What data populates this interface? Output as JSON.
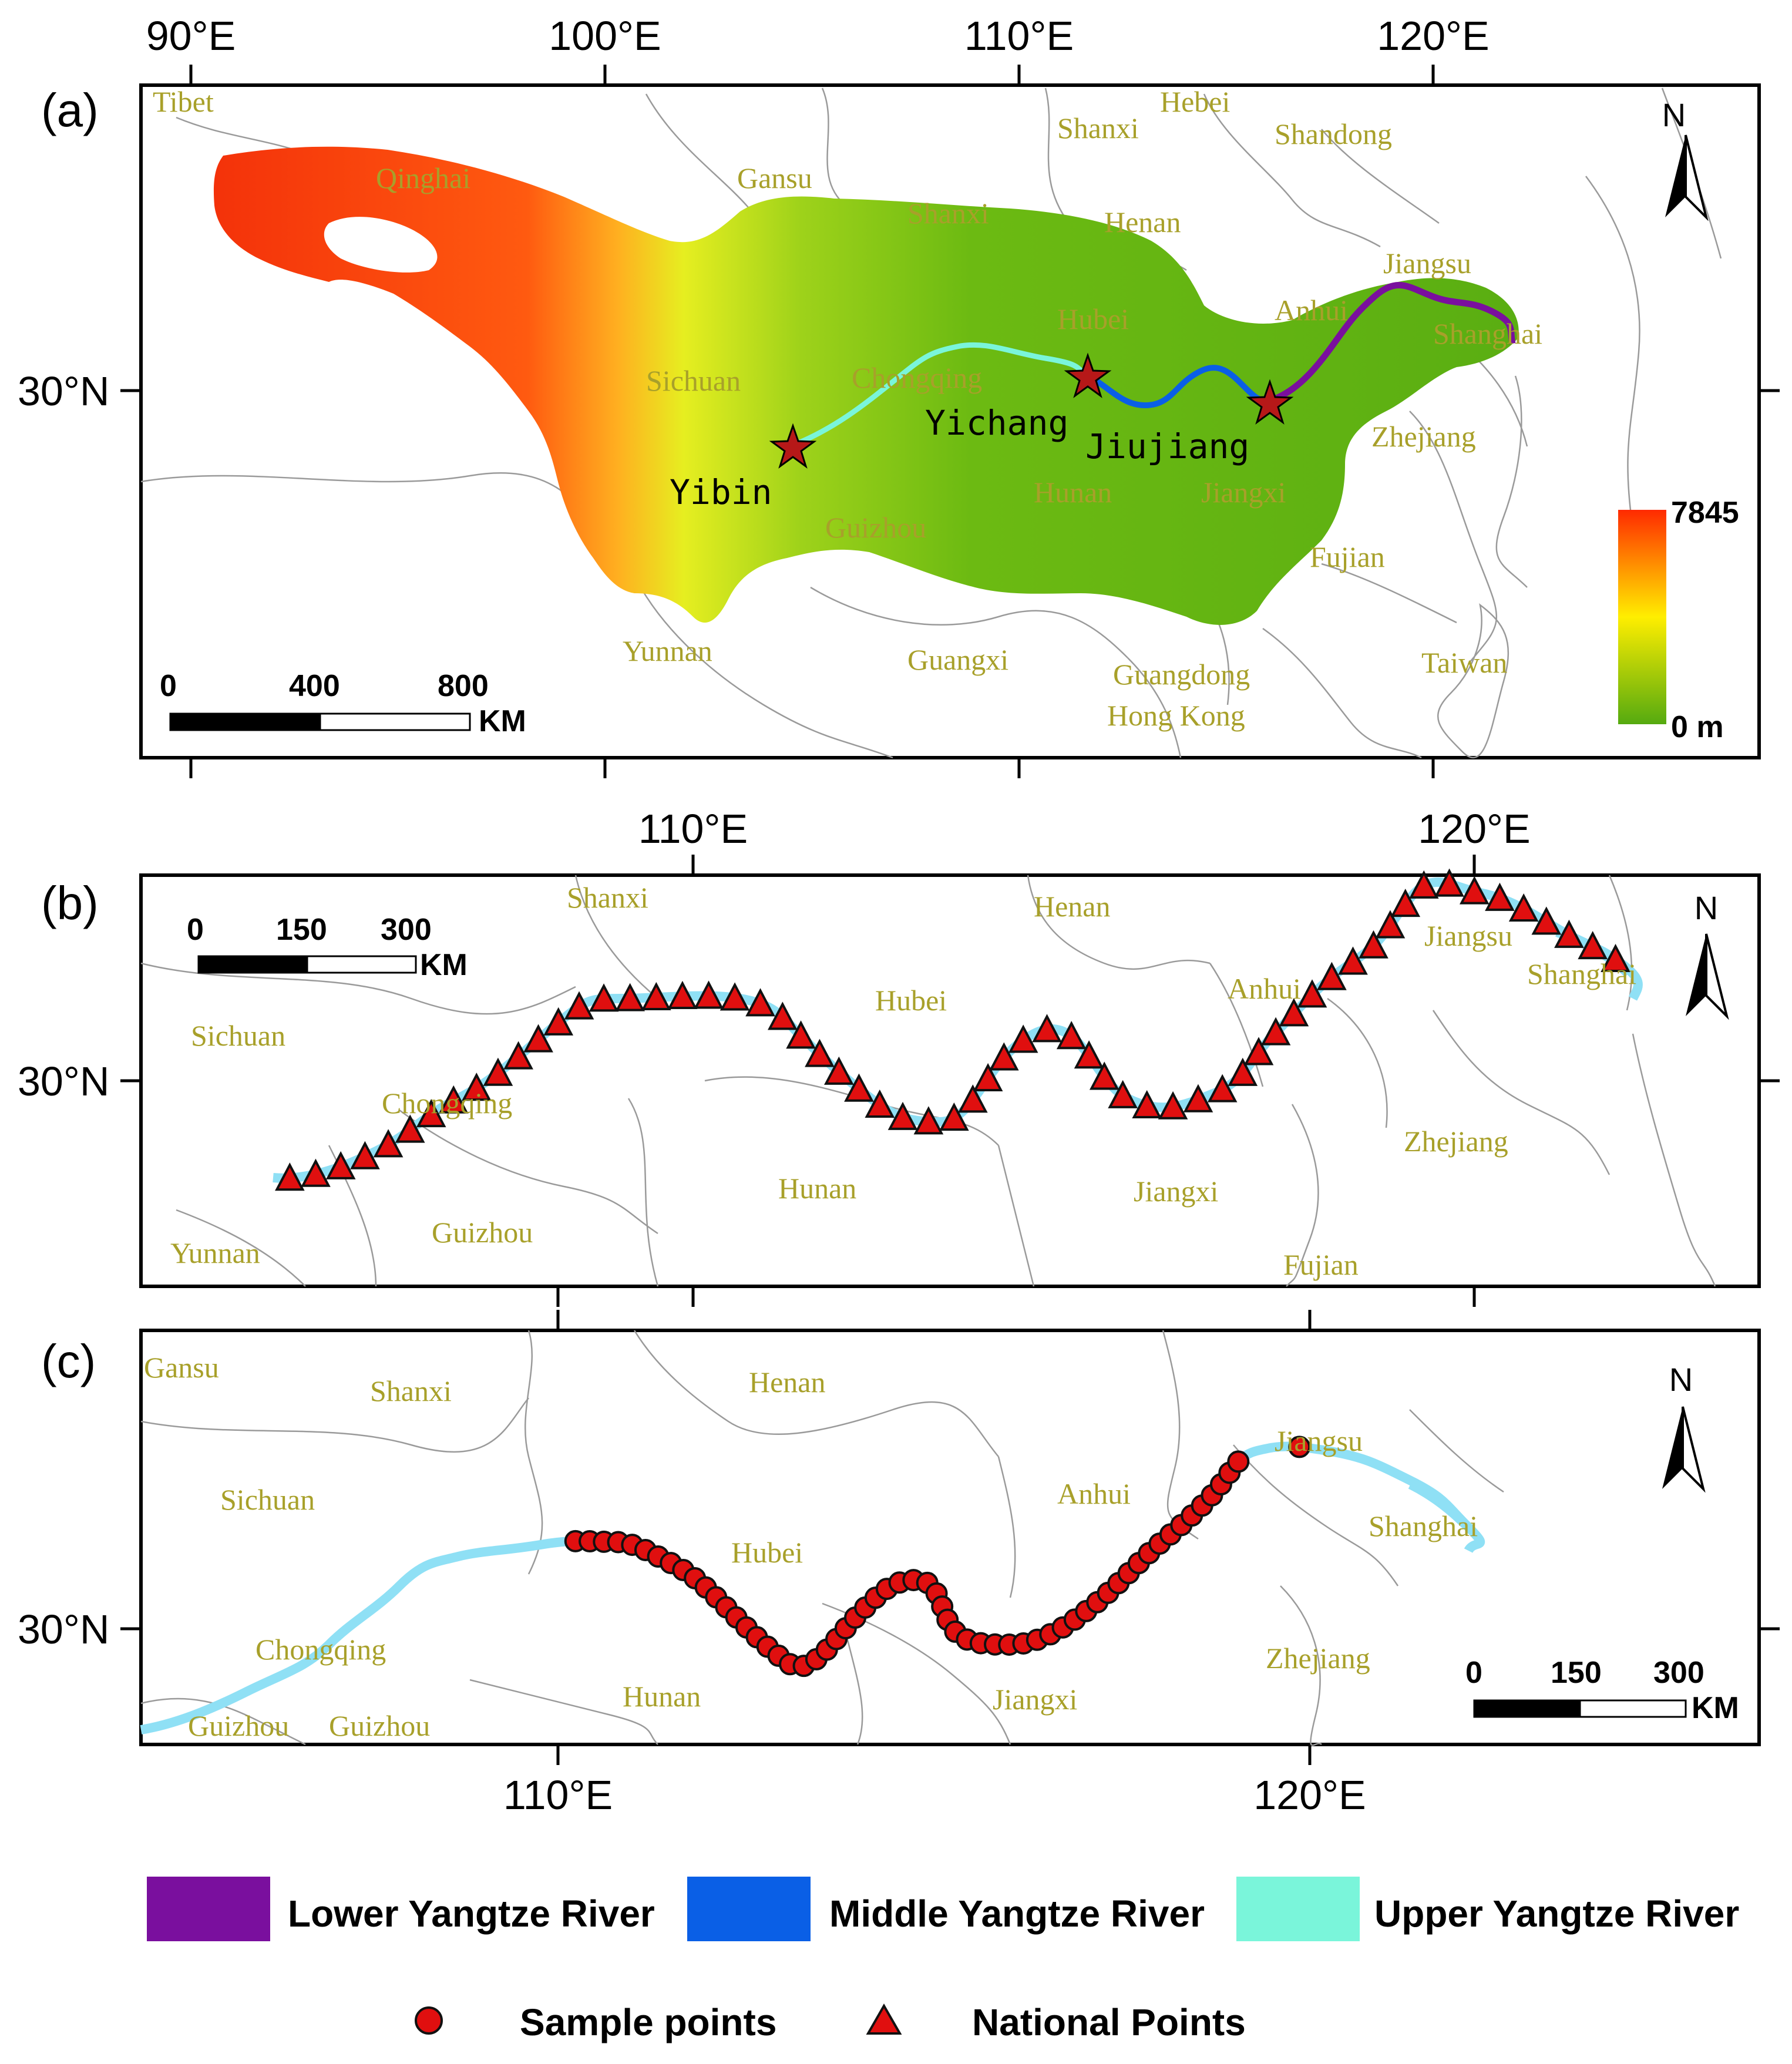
{
  "map": {
    "panel_a": {
      "label": "(a)",
      "top_ticks": [
        "90°E",
        "100°E",
        "110°E",
        "120°E"
      ],
      "lat_tick": "30°N",
      "provinces": [
        "Tibet",
        "Qinghai",
        "Gansu",
        "Shanxi",
        "Hebei",
        "Shanxi",
        "Shandong",
        "Henan",
        "Jiangsu",
        "Anhui",
        "Hubei",
        "Shanghai",
        "Sichuan",
        "Chongqing",
        "Zhejiang",
        "Hunan",
        "Jiangxi",
        "Guizhou",
        "Fujian",
        "Yunnan",
        "Guangxi",
        "Guangdong",
        "Hong Kong",
        "Taiwan"
      ],
      "cities": [
        "Yibin",
        "Yichang",
        "Jiujiang"
      ],
      "scale": {
        "ticks": [
          "0",
          "400",
          "800"
        ],
        "unit": "KM"
      },
      "north": "N",
      "elevation": {
        "max": "7845",
        "min": "0 m",
        "colors": [
          "#ff2a00",
          "#ffee00",
          "#55aa10"
        ]
      }
    },
    "panel_b": {
      "label": "(b)",
      "top_ticks": [
        "110°E",
        "120°E"
      ],
      "lat_tick": "30°N",
      "provinces": [
        "Shanxi",
        "Henan",
        "Sichuan",
        "Hubei",
        "Anhui",
        "Jiangsu",
        "Shanghai",
        "Chongqing",
        "Zhejiang",
        "Hunan",
        "Jiangxi",
        "Guizhou",
        "Yunnan",
        "Fujian"
      ],
      "scale": {
        "ticks": [
          "0",
          "150",
          "300"
        ],
        "unit": "KM"
      },
      "north": "N"
    },
    "panel_c": {
      "label": "(c)",
      "bottom_ticks": [
        "110°E",
        "120°E"
      ],
      "lat_tick": "30°N",
      "provinces": [
        "Gansu",
        "Shanxi",
        "Henan",
        "Jiangsu",
        "Sichuan",
        "Anhui",
        "Hubei",
        "Shanghai",
        "Chongqing",
        "Zhejiang",
        "Hunan",
        "Jiangxi",
        "Guizhou",
        "Guizhou"
      ],
      "scale": {
        "ticks": [
          "0",
          "150",
          "300"
        ],
        "unit": "KM"
      },
      "north": "N"
    },
    "legend": {
      "lower": "Lower Yangtze River",
      "middle": "Middle Yangtze River",
      "upper": "Upper Yangtze River",
      "sample": "Sample points",
      "national": "National Points",
      "colors": {
        "lower": "#7a0f9e",
        "middle": "#0a5fe6",
        "upper": "#7af5da",
        "river": "#8fe0f5",
        "point": "#e00f0f"
      }
    }
  }
}
